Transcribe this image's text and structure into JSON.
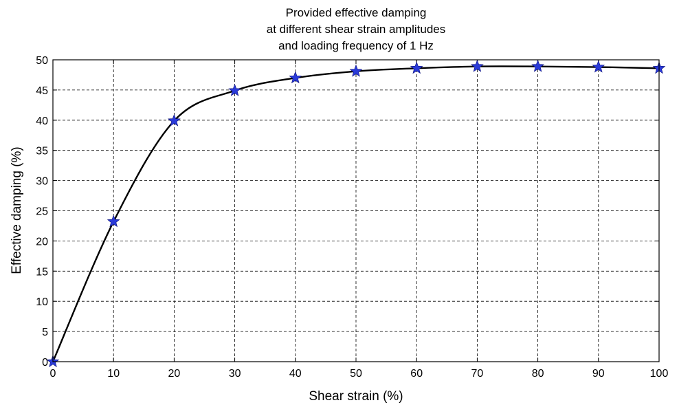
{
  "chart_data": {
    "type": "line",
    "title_lines": [
      "Provided effective damping",
      "at different shear strain amplitudes",
      "and loading frequency of 1 Hz"
    ],
    "xlabel": "Shear strain (%)",
    "ylabel": "Effective damping (%)",
    "xlim": [
      0,
      100
    ],
    "ylim": [
      0,
      50
    ],
    "xticks": [
      0,
      10,
      20,
      30,
      40,
      50,
      60,
      70,
      80,
      90,
      100
    ],
    "yticks": [
      0,
      5,
      10,
      15,
      20,
      25,
      30,
      35,
      40,
      45,
      50
    ],
    "grid": true,
    "marker_color": "#2a3ad8",
    "line_color": "#000000",
    "series": [
      {
        "marker": "star",
        "x": [
          0,
          10,
          20,
          30,
          40,
          50,
          60,
          70,
          80,
          90,
          100
        ],
        "y": [
          0,
          23.2,
          39.9,
          44.9,
          47.0,
          48.1,
          48.6,
          48.9,
          48.9,
          48.8,
          48.6
        ]
      }
    ]
  }
}
